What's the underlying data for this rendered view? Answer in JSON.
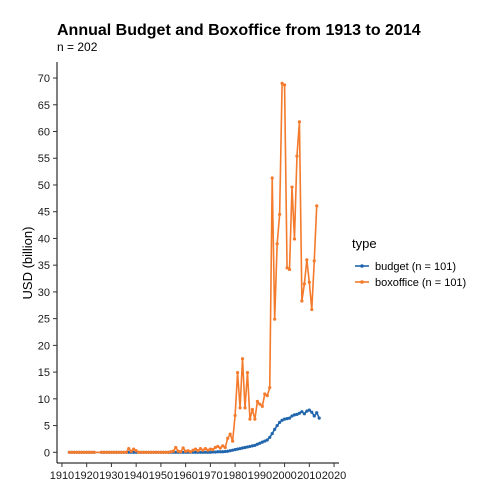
{
  "chart_data": {
    "type": "line",
    "title": "Annual Budget and Boxoffice from 1913 to 2014",
    "subtitle": "n = 202",
    "xlabel": "",
    "ylabel": "USD (billion)",
    "xlim": [
      1908,
      2022
    ],
    "ylim": [
      -2,
      73
    ],
    "x_ticks": [
      1910,
      1920,
      1930,
      1940,
      1950,
      1960,
      1970,
      1980,
      1990,
      2000,
      2010,
      2020
    ],
    "y_ticks": [
      0,
      5,
      10,
      15,
      20,
      25,
      30,
      35,
      40,
      45,
      50,
      55,
      60,
      65,
      70
    ],
    "grid": false,
    "legend": {
      "title": "type",
      "position": "right"
    },
    "series": [
      {
        "name": "budget (n = 101)",
        "color": "#2166ac",
        "points": [
          [
            1913,
            0
          ],
          [
            1914,
            0
          ],
          [
            1915,
            0
          ],
          [
            1916,
            0
          ],
          [
            1917,
            0
          ],
          [
            1918,
            0
          ],
          [
            1919,
            0
          ],
          [
            1920,
            0
          ],
          [
            1921,
            0
          ],
          [
            1922,
            0
          ],
          [
            1923,
            0
          ],
          [
            1926,
            0
          ],
          [
            1927,
            0
          ],
          [
            1928,
            0
          ],
          [
            1929,
            0
          ],
          [
            1930,
            0
          ],
          [
            1931,
            0
          ],
          [
            1932,
            0
          ],
          [
            1933,
            0
          ],
          [
            1934,
            0
          ],
          [
            1935,
            0
          ],
          [
            1936,
            0
          ],
          [
            1937,
            0
          ],
          [
            1938,
            0
          ],
          [
            1939,
            0
          ],
          [
            1940,
            0
          ],
          [
            1941,
            0
          ],
          [
            1942,
            0
          ],
          [
            1943,
            0
          ],
          [
            1944,
            0
          ],
          [
            1945,
            0
          ],
          [
            1946,
            0
          ],
          [
            1947,
            0
          ],
          [
            1948,
            0
          ],
          [
            1949,
            0
          ],
          [
            1950,
            0
          ],
          [
            1951,
            0
          ],
          [
            1952,
            0
          ],
          [
            1953,
            0
          ],
          [
            1954,
            0
          ],
          [
            1955,
            0
          ],
          [
            1956,
            0
          ],
          [
            1957,
            0
          ],
          [
            1958,
            0
          ],
          [
            1959,
            0
          ],
          [
            1960,
            0
          ],
          [
            1961,
            0
          ],
          [
            1962,
            0
          ],
          [
            1963,
            0
          ],
          [
            1964,
            0
          ],
          [
            1965,
            0
          ],
          [
            1966,
            0
          ],
          [
            1967,
            0
          ],
          [
            1968,
            0
          ],
          [
            1969,
            0
          ],
          [
            1970,
            0
          ],
          [
            1971,
            0.05
          ],
          [
            1972,
            0.05
          ],
          [
            1973,
            0.1
          ],
          [
            1974,
            0.1
          ],
          [
            1975,
            0.1
          ],
          [
            1976,
            0.15
          ],
          [
            1977,
            0.2
          ],
          [
            1978,
            0.3
          ],
          [
            1979,
            0.4
          ],
          [
            1980,
            0.5
          ],
          [
            1981,
            0.6
          ],
          [
            1982,
            0.7
          ],
          [
            1983,
            0.8
          ],
          [
            1984,
            0.9
          ],
          [
            1985,
            1.0
          ],
          [
            1986,
            1.1
          ],
          [
            1987,
            1.2
          ],
          [
            1988,
            1.3
          ],
          [
            1989,
            1.5
          ],
          [
            1990,
            1.7
          ],
          [
            1991,
            1.9
          ],
          [
            1992,
            2.1
          ],
          [
            1993,
            2.3
          ],
          [
            1994,
            2.8
          ],
          [
            1995,
            3.5
          ],
          [
            1996,
            4.3
          ],
          [
            1997,
            5.0
          ],
          [
            1998,
            5.6
          ],
          [
            1999,
            6.0
          ],
          [
            2000,
            6.2
          ],
          [
            2001,
            6.3
          ],
          [
            2002,
            6.4
          ],
          [
            2003,
            6.8
          ],
          [
            2004,
            7.0
          ],
          [
            2005,
            7.1
          ],
          [
            2006,
            7.3
          ],
          [
            2007,
            7.6
          ],
          [
            2008,
            7.2
          ],
          [
            2009,
            7.7
          ],
          [
            2010,
            7.9
          ],
          [
            2011,
            7.5
          ],
          [
            2012,
            6.8
          ],
          [
            2013,
            7.4
          ],
          [
            2014,
            6.4
          ]
        ]
      },
      {
        "name": "boxoffice (n = 101)",
        "color": "#f47a2c",
        "points": [
          [
            1913,
            0
          ],
          [
            1914,
            0
          ],
          [
            1915,
            0
          ],
          [
            1916,
            0
          ],
          [
            1917,
            0
          ],
          [
            1918,
            0
          ],
          [
            1919,
            0
          ],
          [
            1920,
            0
          ],
          [
            1921,
            0
          ],
          [
            1922,
            0
          ],
          [
            1923,
            0
          ],
          [
            1926,
            0
          ],
          [
            1927,
            0
          ],
          [
            1928,
            0
          ],
          [
            1929,
            0
          ],
          [
            1930,
            0
          ],
          [
            1931,
            0
          ],
          [
            1932,
            0
          ],
          [
            1933,
            0
          ],
          [
            1934,
            0
          ],
          [
            1935,
            0
          ],
          [
            1936,
            0
          ],
          [
            1937,
            0.7
          ],
          [
            1938,
            0.2
          ],
          [
            1939,
            0.6
          ],
          [
            1940,
            0.3
          ],
          [
            1941,
            0
          ],
          [
            1942,
            0
          ],
          [
            1943,
            0
          ],
          [
            1944,
            0
          ],
          [
            1945,
            0
          ],
          [
            1946,
            0
          ],
          [
            1947,
            0
          ],
          [
            1948,
            0
          ],
          [
            1949,
            0
          ],
          [
            1950,
            0
          ],
          [
            1951,
            0
          ],
          [
            1952,
            0
          ],
          [
            1953,
            0
          ],
          [
            1954,
            0.1
          ],
          [
            1955,
            0.2
          ],
          [
            1956,
            0.9
          ],
          [
            1957,
            0.2
          ],
          [
            1958,
            0.1
          ],
          [
            1959,
            0.8
          ],
          [
            1960,
            0.2
          ],
          [
            1961,
            0.3
          ],
          [
            1962,
            0.1
          ],
          [
            1963,
            0.4
          ],
          [
            1964,
            0.6
          ],
          [
            1965,
            0.3
          ],
          [
            1966,
            0.7
          ],
          [
            1967,
            0.4
          ],
          [
            1968,
            0.7
          ],
          [
            1969,
            0.4
          ],
          [
            1970,
            0.6
          ],
          [
            1971,
            0.5
          ],
          [
            1972,
            0.9
          ],
          [
            1973,
            1.1
          ],
          [
            1974,
            0.8
          ],
          [
            1975,
            1.2
          ],
          [
            1976,
            0.9
          ],
          [
            1977,
            2.6
          ],
          [
            1978,
            3.4
          ],
          [
            1979,
            2.1
          ],
          [
            1980,
            6.9
          ],
          [
            1981,
            14.9
          ],
          [
            1982,
            8.3
          ],
          [
            1983,
            17.5
          ],
          [
            1984,
            8.3
          ],
          [
            1985,
            14.9
          ],
          [
            1986,
            6.2
          ],
          [
            1987,
            8.0
          ],
          [
            1988,
            6.2
          ],
          [
            1989,
            9.5
          ],
          [
            1990,
            9.0
          ],
          [
            1991,
            8.6
          ],
          [
            1992,
            10.9
          ],
          [
            1993,
            10.6
          ],
          [
            1994,
            12.1
          ],
          [
            1995,
            51.3
          ],
          [
            1996,
            24.9
          ],
          [
            1997,
            39.0
          ],
          [
            1998,
            44.5
          ],
          [
            1999,
            69.0
          ],
          [
            2000,
            68.7
          ],
          [
            2001,
            34.5
          ],
          [
            2002,
            34.2
          ],
          [
            2003,
            49.6
          ],
          [
            2004,
            39.9
          ],
          [
            2005,
            55.4
          ],
          [
            2006,
            61.8
          ],
          [
            2007,
            28.3
          ],
          [
            2008,
            31.5
          ],
          [
            2009,
            36.0
          ],
          [
            2010,
            31.8
          ],
          [
            2011,
            26.7
          ],
          [
            2012,
            35.8
          ],
          [
            2013,
            46.1
          ]
        ]
      }
    ]
  }
}
